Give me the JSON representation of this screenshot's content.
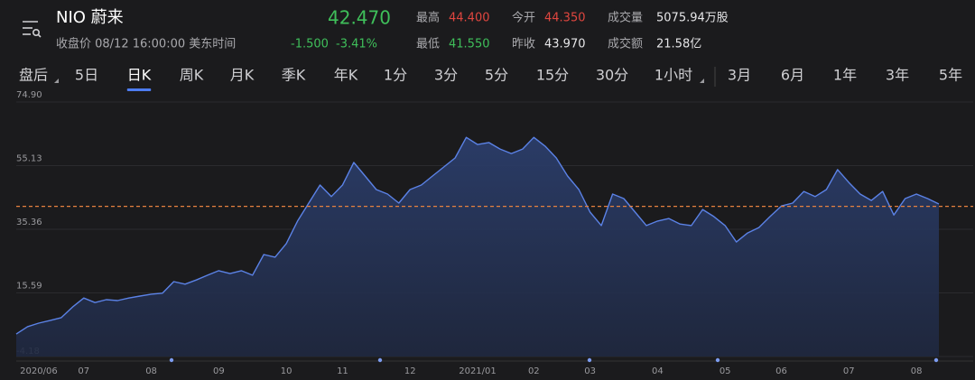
{
  "header": {
    "title": "NIO 蔚来",
    "price": "42.470",
    "status": "收盘价 08/12 16:00:00 美东时间",
    "change": "-1.500",
    "change_pct": "-3.41%",
    "stats": [
      {
        "label": "最高",
        "value": "44.400",
        "tone": "up"
      },
      {
        "label": "今开",
        "value": "44.350",
        "tone": "up"
      },
      {
        "label": "成交量",
        "value": "5075.94万股",
        "tone": "plain"
      },
      {
        "label": "最低",
        "value": "41.550",
        "tone": "down"
      },
      {
        "label": "昨收",
        "value": "43.970",
        "tone": "plain"
      },
      {
        "label": "成交额",
        "value": "21.58亿",
        "tone": "plain"
      }
    ]
  },
  "tabs": [
    "盘后",
    "5日",
    "日K",
    "周K",
    "月K",
    "季K",
    "年K",
    "1分",
    "3分",
    "5分",
    "15分",
    "30分",
    "1小时",
    "3月",
    "6月",
    "1年",
    "3年",
    "5年"
  ],
  "selected_index": 2,
  "chart_data": {
    "type": "area",
    "categories": [
      null,
      null,
      "2020/06",
      null,
      null,
      null,
      "07",
      null,
      null,
      null,
      null,
      null,
      "08",
      null,
      null,
      null,
      null,
      null,
      "09",
      null,
      null,
      null,
      null,
      null,
      "10",
      null,
      null,
      null,
      null,
      "11",
      null,
      null,
      null,
      null,
      null,
      "12",
      null,
      null,
      null,
      null,
      null,
      "2021/01",
      null,
      null,
      null,
      null,
      "02",
      null,
      null,
      null,
      null,
      "03",
      null,
      null,
      null,
      null,
      null,
      "04",
      null,
      null,
      null,
      null,
      null,
      "05",
      null,
      null,
      null,
      null,
      "06",
      null,
      null,
      null,
      null,
      null,
      "07",
      null,
      null,
      null,
      null,
      null,
      "08",
      null,
      null
    ],
    "values": [
      2.8,
      5.1,
      6.2,
      7.0,
      7.9,
      11.2,
      14.0,
      12.6,
      13.5,
      13.2,
      14.0,
      14.6,
      15.2,
      15.5,
      19.1,
      18.3,
      19.6,
      21.1,
      22.5,
      21.6,
      22.5,
      21.1,
      27.5,
      26.7,
      30.9,
      37.9,
      43.5,
      49.1,
      45.5,
      49.1,
      56.1,
      51.9,
      47.7,
      46.3,
      43.5,
      47.7,
      49.1,
      51.9,
      54.7,
      57.5,
      63.9,
      61.7,
      62.3,
      60.3,
      58.9,
      60.3,
      63.9,
      61.2,
      57.5,
      51.9,
      47.7,
      40.7,
      36.5,
      46.3,
      44.9,
      40.7,
      36.5,
      37.9,
      38.7,
      37.0,
      36.5,
      41.5,
      39.3,
      36.5,
      31.4,
      34.2,
      35.9,
      39.3,
      42.6,
      43.5,
      47.1,
      45.5,
      47.7,
      53.9,
      49.9,
      46.3,
      44.3,
      47.1,
      39.8,
      44.9,
      46.3,
      44.9,
      43.2
    ],
    "color": "#5b82e6",
    "ylim": [
      -4.18,
      74.9
    ],
    "yticks": [
      {
        "value": 74.9,
        "label": "74.90"
      },
      55.13,
      35.36,
      15.59,
      -4.18
    ],
    "reference_line": 42.47,
    "reference_color": "#e5803f",
    "grid": true
  }
}
